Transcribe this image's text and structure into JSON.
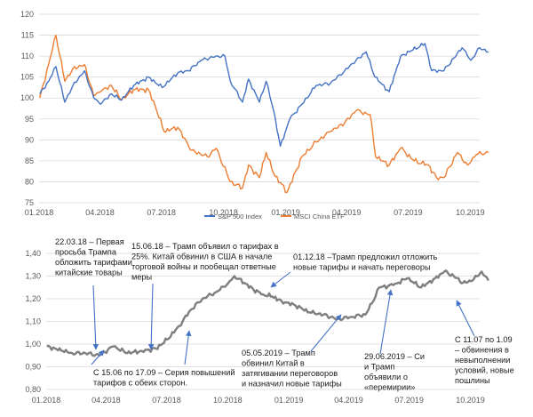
{
  "chart_data": [
    {
      "type": "line",
      "title": "",
      "xlabel": "",
      "ylabel": "",
      "ylim": [
        75,
        120
      ],
      "y_ticks": [
        "75",
        "80",
        "85",
        "90",
        "95",
        "100",
        "105",
        "110",
        "115",
        "120"
      ],
      "x_ticks": [
        "01.2018",
        "04.2018",
        "07.2018",
        "10.2018",
        "01.2019",
        "04.2019",
        "07.2019",
        "10.2019"
      ],
      "grid": true,
      "legend_position": "bottom-center",
      "series": [
        {
          "name": "S&P 500 Index",
          "color": "#4472c4",
          "x": [
            "2018-01-02",
            "2018-01-15",
            "2018-01-26",
            "2018-02-08",
            "2018-02-20",
            "2018-03-09",
            "2018-03-23",
            "2018-04-02",
            "2018-04-18",
            "2018-05-03",
            "2018-05-21",
            "2018-06-12",
            "2018-07-02",
            "2018-07-25",
            "2018-08-10",
            "2018-08-29",
            "2018-09-20",
            "2018-10-03",
            "2018-10-11",
            "2018-10-29",
            "2018-11-07",
            "2018-11-23",
            "2018-12-03",
            "2018-12-14",
            "2018-12-24",
            "2019-01-07",
            "2019-01-25",
            "2019-02-15",
            "2019-03-08",
            "2019-03-29",
            "2019-04-15",
            "2019-04-30",
            "2019-05-13",
            "2019-06-03",
            "2019-06-20",
            "2019-07-26",
            "2019-08-05",
            "2019-08-23",
            "2019-09-19",
            "2019-10-02",
            "2019-10-15",
            "2019-10-28"
          ],
          "values": [
            101,
            104,
            107.5,
            99,
            103,
            106.5,
            100,
            98.5,
            101,
            99.5,
            103,
            105,
            102.5,
            106,
            106.5,
            109,
            110,
            110,
            104,
            99,
            104.5,
            99,
            104,
            97,
            88.5,
            95,
            98.5,
            103,
            103.5,
            106.5,
            109,
            111,
            105,
            101.5,
            110,
            113,
            106.5,
            106.5,
            112,
            109,
            112,
            111
          ]
        },
        {
          "name": "MSCI China ETF",
          "color": "#ed7d31",
          "x": [
            "2018-01-02",
            "2018-01-15",
            "2018-01-26",
            "2018-02-08",
            "2018-02-20",
            "2018-03-09",
            "2018-03-23",
            "2018-04-02",
            "2018-04-18",
            "2018-05-03",
            "2018-05-21",
            "2018-06-12",
            "2018-06-22",
            "2018-07-05",
            "2018-07-25",
            "2018-08-15",
            "2018-09-07",
            "2018-09-20",
            "2018-10-11",
            "2018-10-29",
            "2018-11-07",
            "2018-11-23",
            "2018-12-03",
            "2018-12-14",
            "2019-01-03",
            "2019-01-25",
            "2019-02-15",
            "2019-03-08",
            "2019-03-29",
            "2019-04-15",
            "2019-05-06",
            "2019-05-14",
            "2019-06-03",
            "2019-06-20",
            "2019-07-10",
            "2019-07-31",
            "2019-08-12",
            "2019-08-23",
            "2019-09-12",
            "2019-09-27",
            "2019-10-10",
            "2019-10-28"
          ],
          "values": [
            100,
            108,
            115,
            104,
            107,
            108,
            100.5,
            101.5,
            103,
            99.5,
            102,
            102,
            98,
            92,
            93,
            87.5,
            86,
            88,
            80,
            78.5,
            84,
            81,
            87,
            82,
            77.5,
            86,
            89.5,
            92,
            94,
            97,
            96,
            86,
            84,
            88,
            85,
            84,
            81,
            81,
            87,
            84,
            86.5,
            87
          ]
        }
      ]
    },
    {
      "type": "line",
      "title": "",
      "xlabel": "",
      "ylabel": "",
      "ylim": [
        0.8,
        1.4
      ],
      "y_ticks": [
        "0,80",
        "0,90",
        "1,00",
        "1,10",
        "1,20",
        "1,30",
        "1,40"
      ],
      "x_ticks": [
        "01.2018",
        "04.2018",
        "07.2018",
        "10.2018",
        "01.2019",
        "04.2019",
        "07.2019",
        "10.2019"
      ],
      "grid": true,
      "series": [
        {
          "color": "#7f7f7f",
          "x": [
            "2018-01-02",
            "2018-01-26",
            "2018-02-09",
            "2018-03-01",
            "2018-03-22",
            "2018-04-12",
            "2018-05-03",
            "2018-05-25",
            "2018-06-15",
            "2018-07-02",
            "2018-07-20",
            "2018-08-06",
            "2018-08-24",
            "2018-09-14",
            "2018-10-02",
            "2018-10-11",
            "2018-10-26",
            "2018-11-09",
            "2018-11-23",
            "2018-12-07",
            "2018-12-21",
            "2019-01-11",
            "2019-02-01",
            "2019-02-22",
            "2019-03-15",
            "2019-04-05",
            "2019-04-26",
            "2019-05-06",
            "2019-05-17",
            "2019-06-07",
            "2019-06-28",
            "2019-07-19",
            "2019-08-09",
            "2019-08-23",
            "2019-09-06",
            "2019-09-20",
            "2019-10-04",
            "2019-10-18",
            "2019-10-28"
          ],
          "values": [
            0.99,
            0.97,
            0.96,
            0.96,
            0.95,
            0.99,
            0.96,
            0.97,
            0.98,
            1.02,
            1.08,
            1.15,
            1.2,
            1.23,
            1.27,
            1.3,
            1.27,
            1.24,
            1.22,
            1.21,
            1.19,
            1.17,
            1.14,
            1.13,
            1.11,
            1.12,
            1.13,
            1.18,
            1.25,
            1.26,
            1.29,
            1.25,
            1.29,
            1.32,
            1.3,
            1.27,
            1.28,
            1.32,
            1.28
          ]
        }
      ],
      "annotations": [
        {
          "id": "a1",
          "lines": [
            "22.03.18 – Первая",
            "просьба Трампа",
            "обложить тарифами",
            "китайские товары"
          ]
        },
        {
          "id": "a2",
          "lines": [
            "15.06.18 – Трамп объявил о тарифах в",
            "25%. Китай обвинил в США в начале",
            "торговой войны и пообещал ответные",
            "меры"
          ]
        },
        {
          "id": "a3",
          "lines": [
            "01.12.18 –Трамп предложил отложить",
            "новые тарифы и начать переговоры"
          ]
        },
        {
          "id": "a4",
          "lines": [
            "С 15.06 по 17.09 – Серия повышений",
            "тарифов с обеих сторон."
          ]
        },
        {
          "id": "a5",
          "lines": [
            "05.05.2019 – Трамп",
            "обвинил Китай в",
            "затягивании переговоров",
            "и назначил новые тарифы"
          ]
        },
        {
          "id": "a6",
          "lines": [
            "29.06.2019 – Си",
            "и Трамп",
            "объявили о",
            "«перемирии»"
          ]
        },
        {
          "id": "a7",
          "lines": [
            "С 11.07 по 1.09",
            "– обвинения в",
            "невыполнении",
            "условий, новые",
            "пошлины"
          ]
        }
      ]
    }
  ]
}
